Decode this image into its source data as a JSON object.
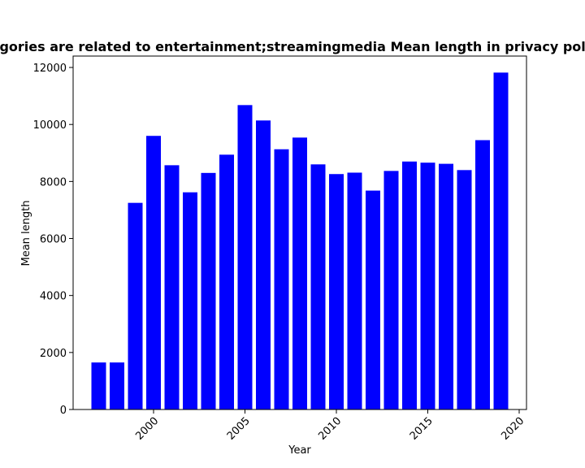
{
  "chart_data": {
    "type": "bar",
    "title": "Categories are related to entertainment;streamingmedia Mean length in privacy policies",
    "xlabel": "Year",
    "ylabel": "Mean length",
    "x": [
      1997,
      1998,
      1999,
      2000,
      2001,
      2002,
      2003,
      2004,
      2005,
      2006,
      2007,
      2008,
      2009,
      2010,
      2011,
      2012,
      2013,
      2014,
      2015,
      2016,
      2017,
      2018,
      2019
    ],
    "values": [
      1650,
      1650,
      7250,
      9600,
      8570,
      7620,
      8300,
      8940,
      10680,
      10140,
      9130,
      9540,
      8600,
      8260,
      8310,
      7680,
      8370,
      8700,
      8660,
      8620,
      8400,
      9450,
      11820
    ],
    "xlim": [
      1995.6,
      2020.4
    ],
    "ylim": [
      0,
      12400
    ],
    "xticks": [
      2000,
      2005,
      2010,
      2015,
      2020
    ],
    "yticks": [
      0,
      2000,
      4000,
      6000,
      8000,
      10000,
      12000
    ],
    "bar_color": "#0000ff",
    "grid": false
  }
}
